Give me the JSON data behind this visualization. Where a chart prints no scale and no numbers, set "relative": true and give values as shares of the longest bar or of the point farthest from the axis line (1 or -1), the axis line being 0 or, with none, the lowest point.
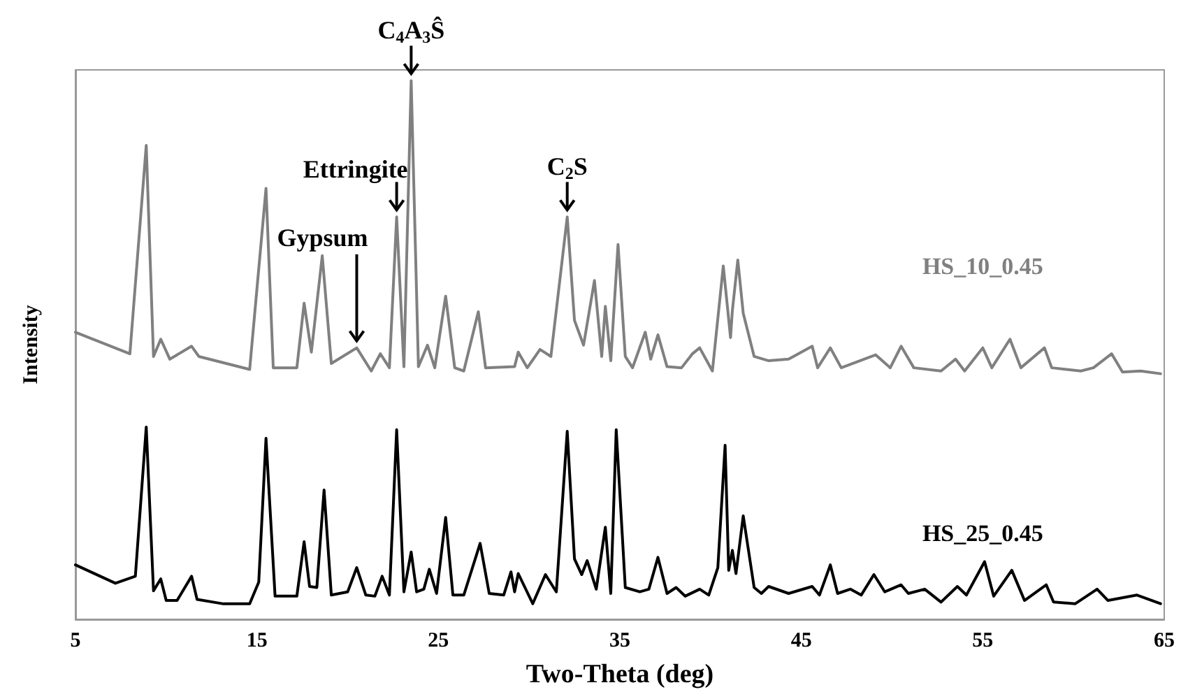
{
  "chart_data": {
    "type": "line",
    "relative": true,
    "xlabel": "Two-Theta (deg)",
    "ylabel": "Intensity",
    "xlim": [
      5,
      65
    ],
    "xticks": [
      5,
      15,
      25,
      35,
      45,
      55,
      65
    ],
    "grid": false,
    "legend": false,
    "marker": "none",
    "line_style": "solid",
    "annotations": [
      {
        "text": "Gypsum",
        "x": 20.5,
        "y": 0.504
      },
      {
        "text": "Ettringite",
        "x": 22.7,
        "y": 0.747
      },
      {
        "text": "C$_{4}$A$_{3}$Ŝ",
        "x": 23.5,
        "y": 1
      },
      {
        "text": "C$_{2}$S",
        "x": 32.1,
        "y": 0.747
      }
    ],
    "series": [
      {
        "name": "HS_10_0.45",
        "color": "#808080",
        "x": [
          5,
          8.0,
          8.9,
          9.3,
          9.7,
          10.2,
          11.4,
          11.8,
          14.6,
          15.5,
          15.9,
          17.2,
          17.6,
          18.0,
          18.6,
          19.1,
          20.5,
          21.3,
          21.8,
          22.3,
          22.7,
          23.1,
          23.5,
          23.9,
          24.4,
          24.8,
          25.4,
          25.9,
          26.4,
          27.2,
          27.6,
          29.2,
          29.4,
          29.9,
          30.6,
          31.2,
          32.1,
          32.5,
          33.0,
          33.6,
          34.0,
          34.2,
          34.5,
          34.9,
          35.3,
          35.7,
          36.4,
          36.7,
          37.1,
          37.6,
          38.4,
          39.0,
          39.4,
          40.1,
          40.7,
          41.1,
          41.2,
          41.5,
          41.8,
          42.4,
          43.2,
          44.3,
          45.6,
          45.9,
          46.6,
          47.2,
          49.1,
          49.9,
          50.5,
          51.2,
          52.7,
          53.5,
          54.0,
          55.0,
          55.5,
          56.5,
          57.1,
          58.4,
          58.8,
          60.4,
          61.1,
          62.1,
          62.7,
          63.7,
          64.8
        ],
        "values": [
          0.533,
          0.493,
          0.88,
          0.488,
          0.52,
          0.483,
          0.507,
          0.488,
          0.464,
          0.8,
          0.467,
          0.467,
          0.587,
          0.496,
          0.675,
          0.475,
          0.504,
          0.461,
          0.493,
          0.467,
          0.747,
          0.469,
          1,
          0.469,
          0.509,
          0.467,
          0.6,
          0.467,
          0.461,
          0.571,
          0.467,
          0.469,
          0.496,
          0.467,
          0.501,
          0.488,
          0.747,
          0.555,
          0.509,
          0.629,
          0.488,
          0.581,
          0.48,
          0.696,
          0.488,
          0.467,
          0.533,
          0.483,
          0.528,
          0.469,
          0.467,
          0.493,
          0.504,
          0.461,
          0.656,
          0.523,
          0.573,
          0.667,
          0.568,
          0.488,
          0.48,
          0.483,
          0.507,
          0.467,
          0.504,
          0.467,
          0.491,
          0.467,
          0.507,
          0.467,
          0.461,
          0.483,
          0.461,
          0.504,
          0.467,
          0.52,
          0.467,
          0.504,
          0.467,
          0.461,
          0.467,
          0.493,
          0.459,
          0.461,
          0.456
        ]
      },
      {
        "name": "HS_25_0.45",
        "color": "#000000",
        "x": [
          5,
          7.2,
          8.3,
          8.9,
          9.3,
          9.7,
          10.0,
          10.6,
          11.4,
          11.7,
          13.1,
          14.6,
          15.1,
          15.5,
          16.0,
          17.2,
          17.6,
          17.9,
          18.3,
          18.7,
          19.1,
          20.0,
          20.5,
          21.0,
          21.5,
          21.9,
          22.3,
          22.7,
          23.1,
          23.5,
          23.8,
          24.2,
          24.5,
          24.9,
          25.4,
          25.8,
          26.4,
          27.3,
          27.8,
          28.6,
          29.0,
          29.2,
          29.4,
          30.2,
          30.9,
          31.5,
          32.1,
          32.5,
          32.9,
          33.2,
          33.7,
          34.2,
          34.5,
          34.8,
          35.3,
          36.1,
          36.6,
          37.1,
          37.6,
          38.1,
          38.6,
          39.4,
          39.9,
          40.4,
          40.8,
          41.0,
          41.2,
          41.4,
          41.8,
          42.4,
          42.8,
          43.2,
          44.3,
          45.6,
          46.0,
          46.6,
          47.0,
          47.7,
          48.3,
          49.0,
          49.6,
          50.5,
          50.9,
          51.8,
          52.7,
          53.6,
          54.1,
          55.1,
          55.6,
          56.6,
          57.3,
          58.5,
          58.9,
          60.1,
          61.3,
          61.9,
          63.5,
          64.8
        ],
        "values": [
          0.101,
          0.067,
          0.08,
          0.357,
          0.053,
          0.075,
          0.035,
          0.035,
          0.08,
          0.037,
          0.029,
          0.029,
          0.069,
          0.336,
          0.043,
          0.043,
          0.144,
          0.061,
          0.059,
          0.24,
          0.045,
          0.051,
          0.096,
          0.045,
          0.043,
          0.08,
          0.045,
          0.352,
          0.051,
          0.125,
          0.051,
          0.056,
          0.093,
          0.048,
          0.189,
          0.045,
          0.045,
          0.141,
          0.048,
          0.045,
          0.088,
          0.051,
          0.085,
          0.029,
          0.083,
          0.051,
          0.349,
          0.112,
          0.083,
          0.109,
          0.056,
          0.171,
          0.048,
          0.352,
          0.059,
          0.051,
          0.056,
          0.115,
          0.048,
          0.059,
          0.043,
          0.056,
          0.045,
          0.096,
          0.323,
          0.091,
          0.128,
          0.085,
          0.192,
          0.059,
          0.048,
          0.061,
          0.048,
          0.061,
          0.045,
          0.101,
          0.048,
          0.056,
          0.045,
          0.083,
          0.051,
          0.064,
          0.048,
          0.056,
          0.032,
          0.061,
          0.045,
          0.107,
          0.043,
          0.091,
          0.035,
          0.064,
          0.032,
          0.029,
          0.056,
          0.035,
          0.045,
          0.029
        ]
      }
    ]
  }
}
